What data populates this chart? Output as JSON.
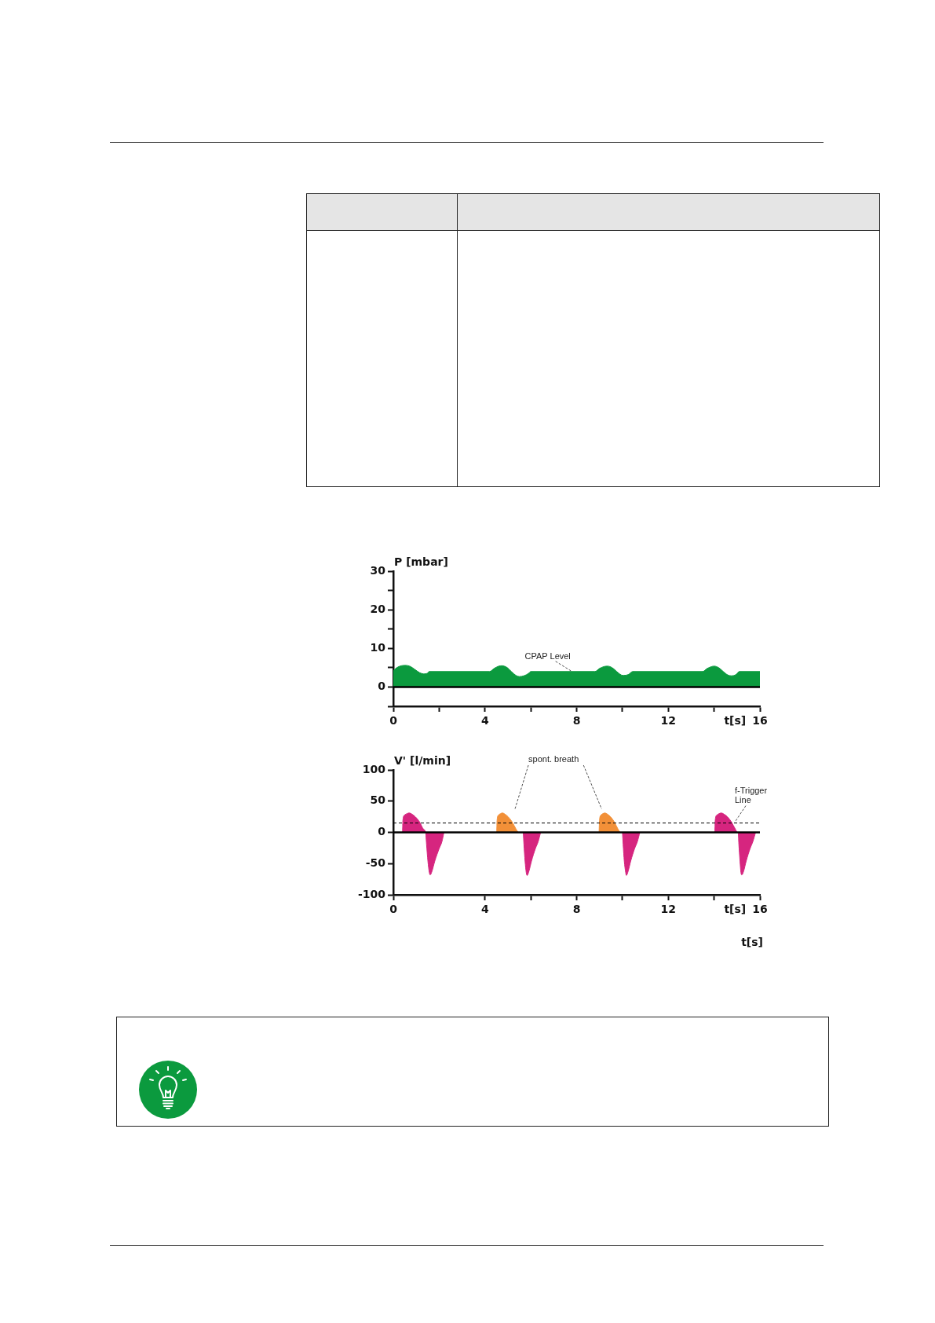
{
  "chart_data": [
    {
      "type": "area",
      "ylabel": "P [mbar]",
      "xlabel": "t[s]",
      "x": [
        0,
        0.15,
        0.35,
        0.55,
        0.75,
        0.95,
        1.15,
        1.32,
        1.5,
        1.56,
        4.2,
        4.4,
        4.6,
        4.75,
        4.95,
        5.15,
        5.35,
        5.5,
        5.7,
        5.9,
        6.0,
        8.8,
        9.0,
        9.2,
        9.35,
        9.55,
        9.75,
        9.95,
        10.05,
        10.25,
        10.45,
        13.5,
        13.7,
        13.9,
        14.0,
        14.2,
        14.4,
        14.6,
        14.75,
        14.95,
        15.1,
        16
      ],
      "series": [
        {
          "color": "#0b9a3e",
          "values": [
            4.2,
            5.0,
            5.5,
            5.6,
            5.3,
            4.5,
            3.7,
            3.4,
            3.6,
            4.0,
            4.0,
            4.8,
            5.4,
            5.5,
            5.1,
            4.0,
            3.0,
            2.7,
            2.9,
            3.5,
            4.0,
            4.0,
            4.8,
            5.3,
            5.4,
            5.0,
            4.0,
            3.1,
            3.0,
            3.2,
            4.0,
            4.0,
            4.8,
            5.3,
            5.4,
            5.0,
            4.0,
            3.1,
            2.9,
            3.2,
            4.0,
            4.0
          ]
        }
      ],
      "xlim": [
        0,
        16
      ],
      "ylim": [
        -5,
        30
      ],
      "xticks": [
        0,
        {
          "value": 2,
          "label": null
        },
        4,
        {
          "value": 6,
          "label": null
        },
        8,
        {
          "value": 10,
          "label": null
        },
        12,
        {
          "value": 14,
          "label": null
        },
        16
      ],
      "yticks": [
        {
          "value": -5,
          "label": null
        },
        0,
        {
          "value": 5,
          "label": null
        },
        10,
        {
          "value": 15,
          "label": null
        },
        20,
        {
          "value": 25,
          "label": null
        },
        30
      ],
      "ref_lines": [
        {
          "axis": "y",
          "value": 0,
          "color": "#000000"
        }
      ],
      "annotations": [
        {
          "text": "CPAP Level",
          "x": 7.8,
          "y": 4
        }
      ],
      "grid": false,
      "legend": false,
      "marker": "none"
    },
    {
      "type": "area",
      "ylabel": "V' [l/min]",
      "xlabel": "t[s]",
      "series": [
        {
          "color": "#d6257f",
          "x": [
            0.4,
            0.42,
            0.5,
            0.6,
            0.69,
            0.82,
            0.96,
            1.14,
            1.32,
            1.41,
            1.45,
            1.51,
            1.57,
            1.61,
            1.69,
            1.81,
            2.0,
            2.12,
            2.21,
            3.9,
            5.67,
            5.7,
            5.75,
            5.8,
            5.84,
            5.92,
            6.03,
            6.2,
            6.32,
            6.43,
            8.2,
            10.0,
            10.03,
            10.08,
            10.14,
            10.17,
            10.25,
            10.36,
            10.53,
            10.65,
            10.76,
            12.4,
            14.03,
            14.05,
            14.13,
            14.22,
            14.31,
            14.44,
            14.58,
            14.75,
            14.93,
            15.02,
            15.05,
            15.08,
            15.13,
            15.17,
            15.21,
            15.29,
            15.4,
            15.57,
            15.69,
            15.81
          ],
          "values": [
            0,
            20,
            28,
            30,
            31,
            29,
            25,
            17,
            5,
            0,
            -19,
            -46,
            -64,
            -68,
            -62,
            -46,
            -26,
            -15,
            0,
            null,
            0,
            -19,
            -46,
            -64,
            -69,
            -62,
            -46,
            -26,
            -15,
            0,
            null,
            0,
            -19,
            -46,
            -64,
            -69,
            -62,
            -46,
            -26,
            -15,
            0,
            null,
            0,
            20,
            28,
            30,
            31,
            29,
            25,
            17,
            5,
            0,
            0,
            -19,
            -46,
            -64,
            -68,
            -62,
            -46,
            -26,
            -15,
            0
          ]
        },
        {
          "color": "#f29038",
          "x": [
            4.51,
            4.53,
            4.6,
            4.68,
            4.76,
            4.88,
            5.01,
            5.18,
            5.36,
            5.45,
            7.2,
            8.98,
            9.0,
            9.07,
            9.15,
            9.23,
            9.35,
            9.48,
            9.64,
            9.81,
            9.9
          ],
          "values": [
            0,
            20,
            28,
            30,
            31,
            29,
            25,
            17,
            5,
            0,
            null,
            0,
            20,
            28,
            30,
            31,
            29,
            25,
            17,
            5,
            0
          ]
        }
      ],
      "xlim": [
        0,
        16
      ],
      "ylim": [
        -100,
        100
      ],
      "xticks": [
        0,
        4,
        {
          "value": 6,
          "label": null
        },
        8,
        {
          "value": 10,
          "label": null
        },
        12,
        {
          "value": 14,
          "label": null
        },
        16
      ],
      "yticks": [
        -100,
        -50,
        0,
        50,
        100
      ],
      "ref_lines": [
        {
          "axis": "y",
          "value": 0,
          "color": "#000000"
        },
        {
          "axis": "y",
          "value": 15,
          "label": "f-Trigger Line",
          "color": "#000000",
          "line_style": "dashed"
        }
      ],
      "annotations": [
        "spont. breath",
        "t[s]"
      ],
      "grid": false,
      "legend": false,
      "marker": "none"
    }
  ]
}
